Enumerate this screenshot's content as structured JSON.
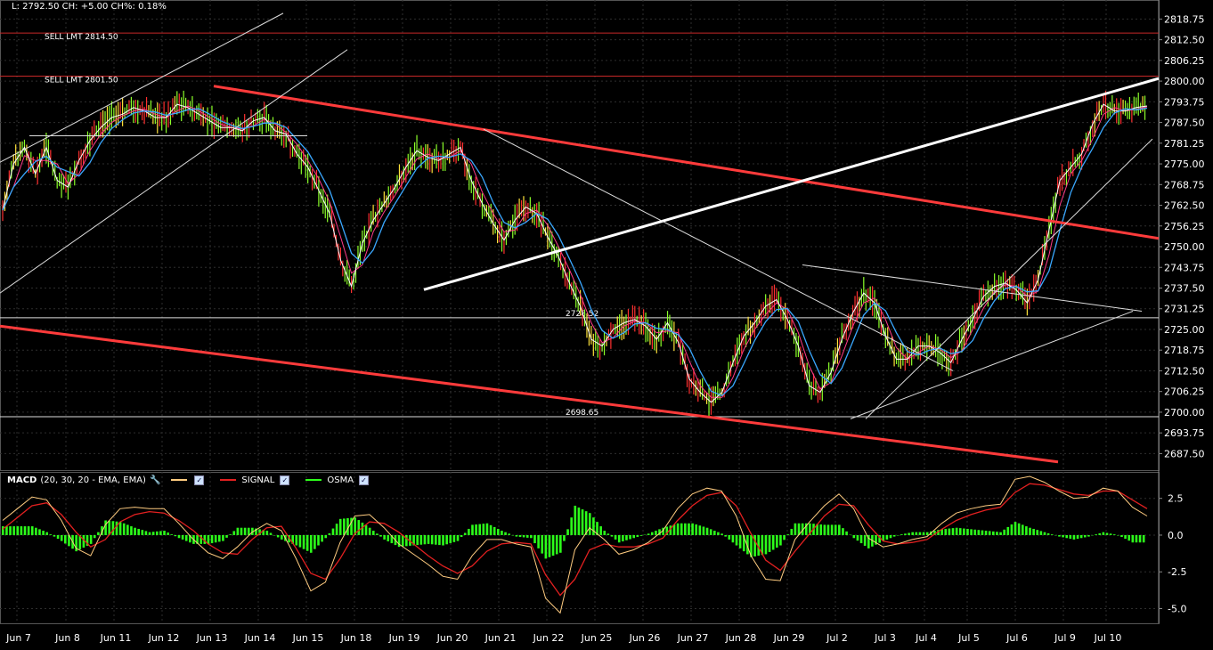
{
  "header": {
    "text": "L: 2792.50 CH: +5.00 CH%: 0.18%"
  },
  "orders": [
    {
      "label": "SELL LMT 2814.50",
      "price": 2814.5
    },
    {
      "label": "SELL LMT 2801.50",
      "price": 2801.5
    }
  ],
  "levels": [
    {
      "label": "2728.52",
      "price": 2728.52
    },
    {
      "label": "2698.65",
      "price": 2698.65
    }
  ],
  "macd_legend": {
    "name": "MACD",
    "params": "(20, 30, 20 - EMA, EMA)",
    "signal": "SIGNAL",
    "osma": "OSMA"
  },
  "colors": {
    "background": "#000000",
    "grid": "#2e2e2e",
    "price_bar": "#8cff2a",
    "ma_fast": "#ffffff",
    "ma_slow": "#3aa8ff",
    "ma_mid": "#ff3b8a",
    "trend_red": "#ff3b3b",
    "trend_white": "#ffffff",
    "order_line": "#c62828",
    "macd_line": "#ffcc80",
    "signal_line": "#e32020",
    "osma_hist": "#2cff1a"
  },
  "chart_data": [
    {
      "type": "line",
      "title": "",
      "x_labels": [
        "Jun 7",
        "Jun 8",
        "Jun 11",
        "Jun 12",
        "Jun 13",
        "Jun 14",
        "Jun 15",
        "Jun 18",
        "Jun 19",
        "Jun 20",
        "Jun 21",
        "Jun 22",
        "Jun 25",
        "Jun 26",
        "Jun 27",
        "Jun 28",
        "Jun 29",
        "Jul 2",
        "Jul 3",
        "Jul 4",
        "Jul 5",
        "Jul 6",
        "Jul 9",
        "Jul 10"
      ],
      "y_ticks": [
        2818.75,
        2812.5,
        2806.25,
        2800.0,
        2793.75,
        2787.5,
        2781.25,
        2775.0,
        2768.75,
        2762.5,
        2756.25,
        2750.0,
        2743.75,
        2737.5,
        2731.25,
        2725.0,
        2718.75,
        2712.5,
        2706.25,
        2700.0,
        2693.75,
        2687.5
      ],
      "ylim": [
        2682.5,
        2824.5
      ],
      "series": [
        {
          "values": [
            2761,
            2775,
            2780,
            2772,
            2780,
            2770,
            2768,
            2776,
            2782,
            2786,
            2789,
            2790,
            2792,
            2791,
            2789,
            2789,
            2793,
            2792,
            2790,
            2788,
            2786,
            2786,
            2785,
            2788,
            2789,
            2785,
            2784,
            2778,
            2774,
            2767,
            2760,
            2746,
            2738,
            2751,
            2758,
            2763,
            2768,
            2774,
            2779,
            2777,
            2776,
            2778,
            2780,
            2770,
            2763,
            2757,
            2752,
            2758,
            2762,
            2760,
            2753,
            2747,
            2739,
            2732,
            2722,
            2720,
            2725,
            2727,
            2728,
            2726,
            2722,
            2727,
            2721,
            2710,
            2706,
            2703,
            2706,
            2715,
            2723,
            2727,
            2732,
            2734,
            2728,
            2720,
            2708,
            2706,
            2712,
            2722,
            2730,
            2736,
            2733,
            2723,
            2716,
            2716,
            2720,
            2720,
            2718,
            2715,
            2722,
            2728,
            2735,
            2738,
            2739,
            2737,
            2733,
            2740,
            2755,
            2770,
            2774,
            2778,
            2787,
            2793,
            2791,
            2791,
            2792,
            2792.5
          ]
        }
      ],
      "trendlines": [
        {
          "color": "red",
          "from": [
            "Jun 13",
            2798.5
          ],
          "to": [
            "Jul 10 end",
            2752.5
          ]
        },
        {
          "color": "red",
          "from": [
            "Jun 7 start",
            2726.0
          ],
          "to": [
            "Jul 9 end",
            2685.0
          ]
        },
        {
          "color": "white",
          "from": [
            "Jun 19",
            2737.0
          ],
          "to": [
            "Jul 10 end",
            2800.8
          ]
        }
      ]
    },
    {
      "type": "line",
      "title": "",
      "y_ticks": [
        2.5,
        0.0,
        -2.5,
        -5.0
      ],
      "ylim": [
        -6.0,
        4.3
      ],
      "series": [
        {
          "name": "MACD",
          "values": [
            1.0,
            1.8,
            2.6,
            2.4,
            1.0,
            -0.9,
            -1.4,
            0.7,
            1.8,
            1.9,
            1.8,
            1.8,
            0.8,
            -0.3,
            -1.2,
            -1.6,
            -0.8,
            0.2,
            0.8,
            0.3,
            -1.6,
            -3.8,
            -3.2,
            -0.5,
            1.3,
            1.4,
            0.5,
            -0.6,
            -1.3,
            -2.0,
            -2.8,
            -3.0,
            -1.4,
            -0.3,
            -0.3,
            -0.6,
            -0.8,
            -4.3,
            -5.3,
            -1.0,
            0.5,
            -0.3,
            -1.3,
            -1.0,
            -0.5,
            0.3,
            1.8,
            2.8,
            3.2,
            3.0,
            1.3,
            -1.4,
            -3.0,
            -3.1,
            -0.3,
            0.9,
            2.0,
            2.8,
            1.8,
            -0.2,
            -0.8,
            -0.6,
            -0.3,
            -0.1,
            0.8,
            1.5,
            1.8,
            2.0,
            2.1,
            3.8,
            4.0,
            3.6,
            3.0,
            2.5,
            2.6,
            3.2,
            3.0,
            1.9,
            1.3
          ]
        },
        {
          "name": "SIGNAL",
          "values": [
            0.4,
            1.2,
            2.0,
            2.2,
            1.4,
            0.2,
            -0.8,
            -0.3,
            0.9,
            1.4,
            1.6,
            1.5,
            1.0,
            0.3,
            -0.6,
            -1.2,
            -1.3,
            -0.3,
            0.5,
            0.6,
            -0.9,
            -2.6,
            -3.0,
            -1.6,
            0.1,
            0.9,
            0.8,
            0.2,
            -0.6,
            -1.4,
            -2.1,
            -2.6,
            -2.1,
            -1.1,
            -0.6,
            -0.5,
            -0.6,
            -2.7,
            -4.1,
            -3.0,
            -1.0,
            -0.6,
            -0.8,
            -0.8,
            -0.6,
            -0.2,
            1.0,
            2.0,
            2.7,
            2.9,
            2.0,
            0.1,
            -1.7,
            -2.4,
            -1.1,
            0.1,
            1.3,
            2.1,
            2.0,
            0.7,
            -0.4,
            -0.6,
            -0.5,
            -0.3,
            0.4,
            1.0,
            1.4,
            1.7,
            1.9,
            2.9,
            3.5,
            3.4,
            3.1,
            2.8,
            2.7,
            3.0,
            3.0,
            2.4,
            1.8
          ]
        },
        {
          "name": "OSMA",
          "type": "bar",
          "values": [
            0.6,
            0.6,
            0.6,
            0.2,
            -0.4,
            -1.1,
            -0.6,
            1.0,
            0.9,
            0.5,
            0.2,
            0.3,
            -0.2,
            -0.6,
            -0.6,
            -0.4,
            0.5,
            0.5,
            0.3,
            -0.3,
            -0.7,
            -1.2,
            -0.2,
            1.1,
            1.2,
            0.5,
            -0.3,
            -0.8,
            -0.7,
            -0.6,
            -0.7,
            -0.4,
            0.7,
            0.8,
            0.3,
            -0.1,
            -0.2,
            -1.6,
            -1.2,
            2.0,
            1.5,
            0.3,
            -0.5,
            -0.2,
            0.1,
            0.5,
            0.8,
            0.8,
            0.5,
            0.1,
            -0.7,
            -1.5,
            -1.3,
            -0.7,
            0.8,
            0.8,
            0.7,
            0.7,
            -0.2,
            -0.9,
            -0.4,
            0.0,
            0.2,
            0.2,
            0.4,
            0.5,
            0.4,
            0.3,
            0.2,
            0.9,
            0.5,
            0.2,
            -0.1,
            -0.3,
            -0.1,
            0.2,
            0.0,
            -0.5,
            -0.5
          ]
        }
      ]
    }
  ]
}
